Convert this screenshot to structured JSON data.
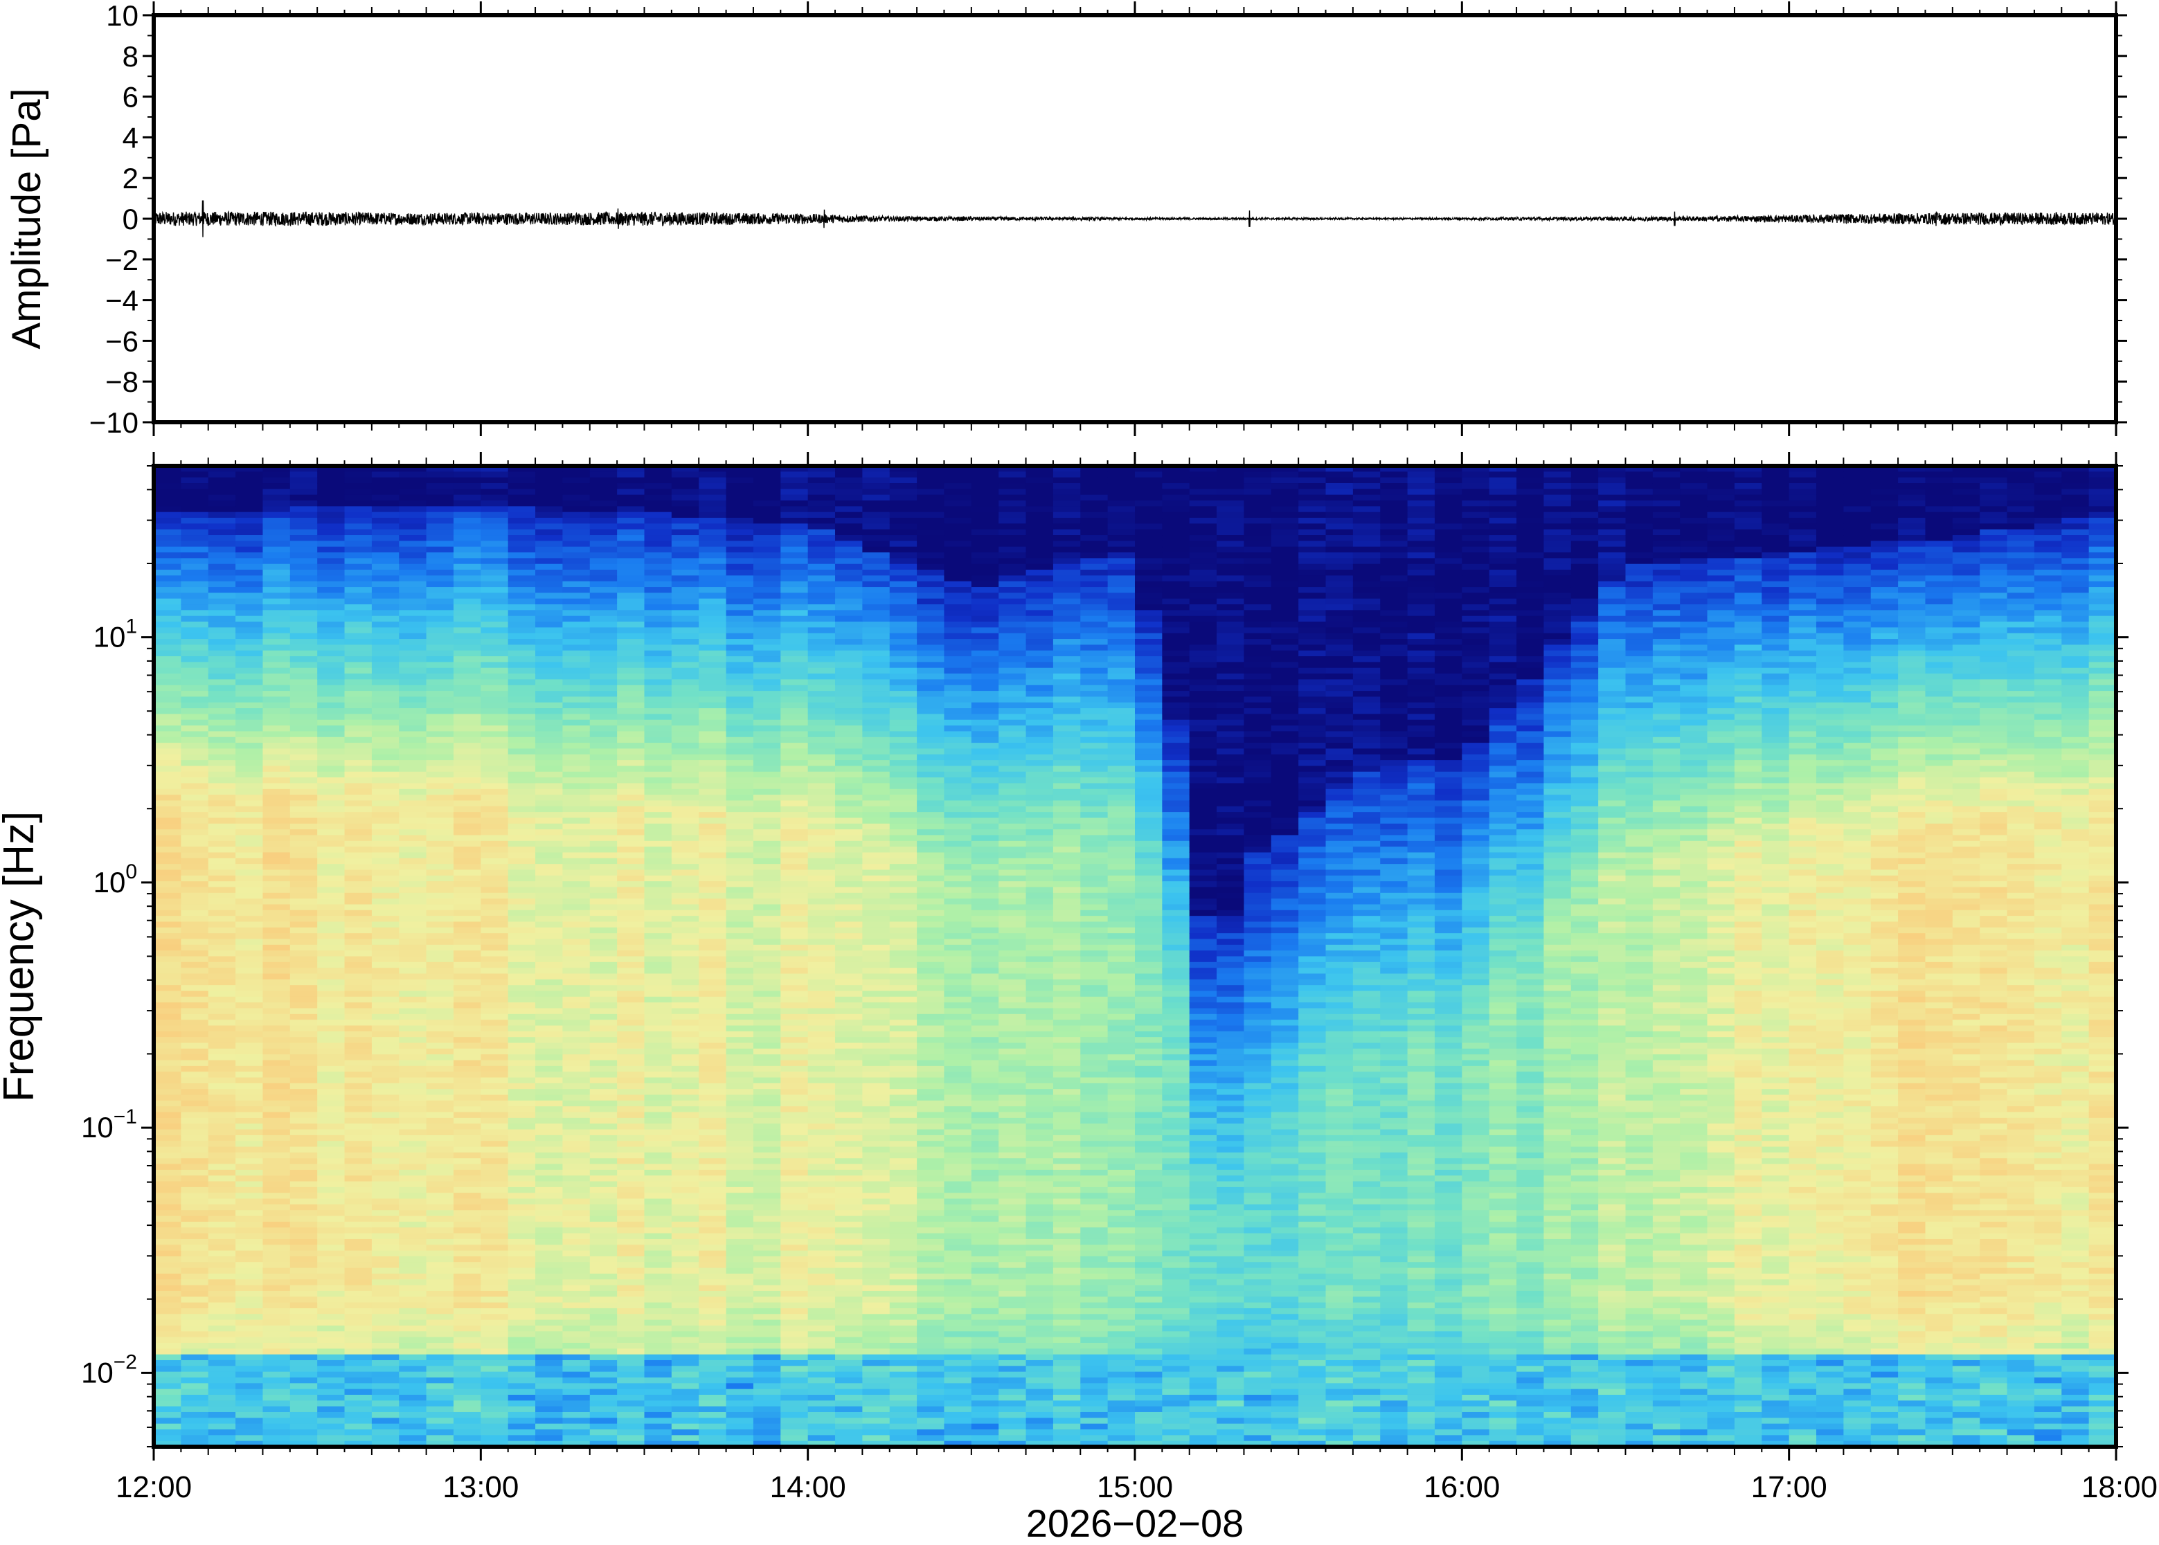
{
  "chart_data": [
    {
      "type": "line",
      "panel": "waveform",
      "ylabel": "Amplitude [Pa]",
      "ylim": [
        -10,
        10
      ],
      "yticks": [
        10,
        8,
        6,
        4,
        2,
        0,
        -2,
        -4,
        -6,
        -8,
        -10
      ],
      "ytick_labels": [
        "10",
        "8",
        "6",
        "4",
        "2",
        "0",
        "−2",
        "−4",
        "−6",
        "−8",
        "−10"
      ],
      "xlim": [
        "12:00",
        "18:00"
      ],
      "x_unit": "hours",
      "envelope_x": [
        0.0,
        0.25,
        0.5,
        0.75,
        1.0,
        1.25,
        1.5,
        1.75,
        2.0,
        2.25,
        2.5,
        2.75,
        3.0,
        3.25,
        3.5,
        3.75,
        4.0,
        4.25,
        4.5,
        4.75,
        5.0,
        5.25,
        5.5,
        5.75,
        6.0
      ],
      "envelope_amplitude": [
        0.35,
        0.35,
        0.35,
        0.3,
        0.3,
        0.3,
        0.35,
        0.3,
        0.25,
        0.12,
        0.1,
        0.08,
        0.06,
        0.05,
        0.05,
        0.04,
        0.06,
        0.08,
        0.1,
        0.12,
        0.18,
        0.25,
        0.3,
        0.3,
        0.3
      ],
      "spikes": [
        [
          0.15,
          0.9
        ],
        [
          1.42,
          0.5
        ],
        [
          2.05,
          0.45
        ],
        [
          3.35,
          0.4
        ],
        [
          4.65,
          0.35
        ],
        [
          5.45,
          0.35
        ]
      ],
      "grid": false
    },
    {
      "type": "heatmap",
      "panel": "spectrogram",
      "ylabel": "Frequency [Hz]",
      "xlabel": "2026−02−08",
      "yscale": "log",
      "ylim": [
        0.005,
        50
      ],
      "yticks": [
        {
          "value": 10,
          "base": "10",
          "exp": "1"
        },
        {
          "value": 1,
          "base": "10",
          "exp": "0"
        },
        {
          "value": 0.1,
          "base": "10",
          "exp": "−1"
        },
        {
          "value": 0.01,
          "base": "10",
          "exp": "−2"
        }
      ],
      "xticks": [
        {
          "value": 0,
          "label": "12:00"
        },
        {
          "value": 1,
          "label": "13:00"
        },
        {
          "value": 2,
          "label": "14:00"
        },
        {
          "value": 3,
          "label": "15:00"
        },
        {
          "value": 4,
          "label": "16:00"
        },
        {
          "value": 5,
          "label": "17:00"
        },
        {
          "value": 6,
          "label": "18:00"
        }
      ],
      "xlim_hours": [
        0,
        6
      ],
      "colormap": [
        "#0a0a7a",
        "#1030c8",
        "#1a7cf0",
        "#3cc4ef",
        "#70e0c8",
        "#aef0a8",
        "#f0f0a0",
        "#f8d080",
        "#f8a060"
      ],
      "time_columns": 72,
      "activity_by_hour": [
        {
          "hour": 0.0,
          "top_energy_freq_hz": 20,
          "low_freq_level": 0.78
        },
        {
          "hour": 1.0,
          "top_energy_freq_hz": 22,
          "low_freq_level": 0.72
        },
        {
          "hour": 2.0,
          "top_energy_freq_hz": 18,
          "low_freq_level": 0.68
        },
        {
          "hour": 2.5,
          "top_energy_freq_hz": 10,
          "low_freq_level": 0.6
        },
        {
          "hour": 3.0,
          "top_energy_freq_hz": 14,
          "low_freq_level": 0.55
        },
        {
          "hour": 3.25,
          "top_energy_freq_hz": 0.6,
          "low_freq_level": 0.42
        },
        {
          "hour": 3.75,
          "top_energy_freq_hz": 2.0,
          "low_freq_level": 0.45
        },
        {
          "hour": 4.0,
          "top_energy_freq_hz": 2.0,
          "low_freq_level": 0.48
        },
        {
          "hour": 4.5,
          "top_energy_freq_hz": 12,
          "low_freq_level": 0.6
        },
        {
          "hour": 5.0,
          "top_energy_freq_hz": 14,
          "low_freq_level": 0.72
        },
        {
          "hour": 5.5,
          "top_energy_freq_hz": 16,
          "low_freq_level": 0.78
        },
        {
          "hour": 6.0,
          "top_energy_freq_hz": 20,
          "low_freq_level": 0.72
        }
      ],
      "grid": false
    }
  ]
}
